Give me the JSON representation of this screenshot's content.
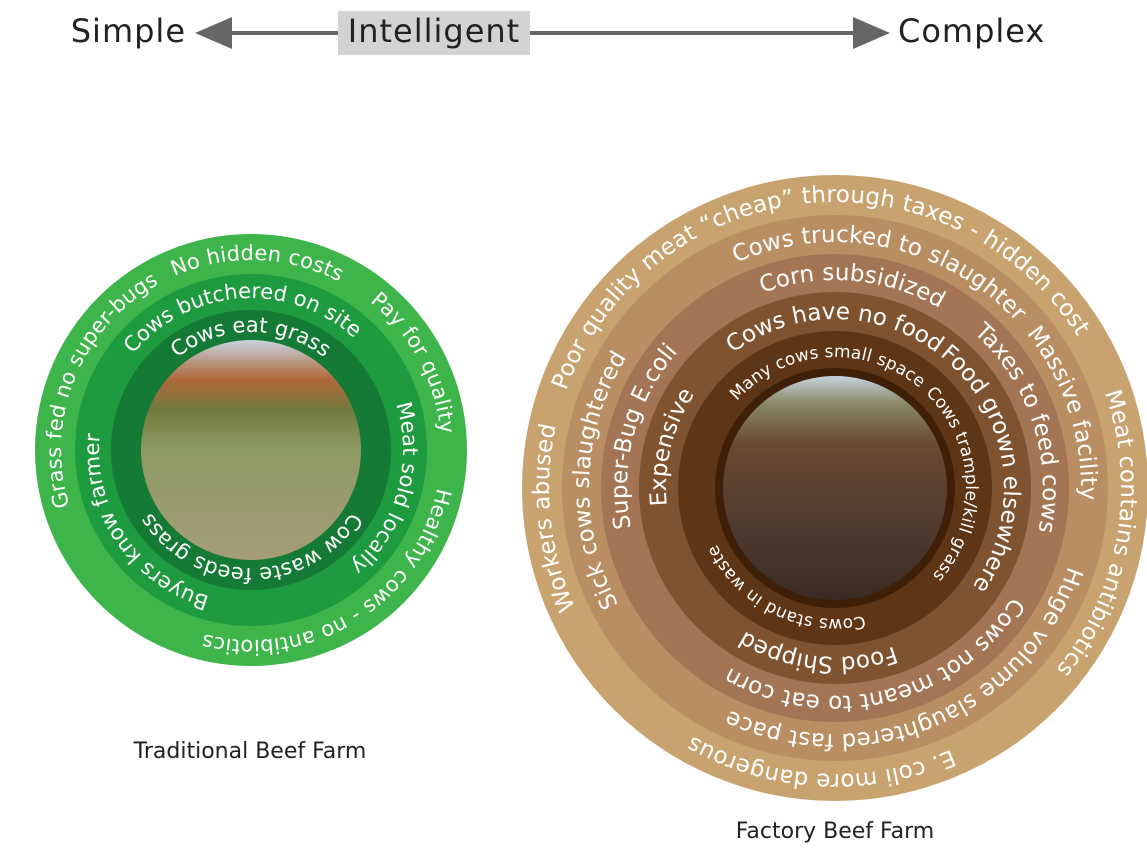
{
  "header": {
    "left": "Simple",
    "center": "Intelligent",
    "right": "Complex"
  },
  "farms": [
    {
      "title": "Traditional Beef Farm",
      "labels": [
        "No hidden costs",
        "Pay for quality",
        "Healthy cows - no antibiotics",
        "Grass fed no super-bugs",
        "Cows butchered on site",
        "Meat sold locally",
        "Buyers know farmer",
        "Cows eat grass",
        "Cow waste feeds grass"
      ]
    },
    {
      "title": "Factory Beef Farm",
      "labels": [
        "Poor quality meat “cheap” through taxes - hidden cost",
        "Meat contains antibiotics",
        "E. coli more dangerous",
        "Workers abused",
        "Cows trucked to slaughter",
        "Massive facility",
        "Huge volume slaughtered fast pace",
        "Sick cows slaughtered",
        "Corn subsidized",
        "Taxes to feed cows",
        "Cows not meant to eat corn",
        "Super-Bug E.coli",
        "Cows have no food",
        "Food grown elsewhere",
        "Food Shipped",
        "Expensive",
        "Many cows small space",
        "Cows trample/kill grass",
        "Cows stand in waste"
      ]
    }
  ]
}
